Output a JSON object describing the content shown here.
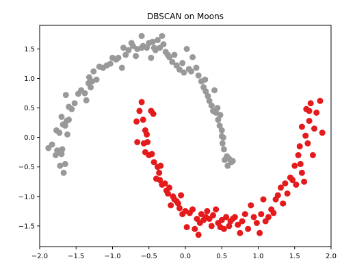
{
  "chart_data": {
    "type": "scatter",
    "title": "DBSCAN on Moons",
    "xlabel": "",
    "ylabel": "",
    "xlim": [
      -2.0,
      2.0
    ],
    "ylim": [
      -1.85,
      1.9
    ],
    "xticks": [
      -2.0,
      -1.5,
      -1.0,
      -0.5,
      0.0,
      0.5,
      1.0,
      1.5,
      2.0
    ],
    "yticks": [
      -1.5,
      -1.0,
      -0.5,
      0.0,
      0.5,
      1.0,
      1.5
    ],
    "x_tick_labels": [
      "−2.0",
      "−1.5",
      "−1.0",
      "−0.5",
      "0.0",
      "0.5",
      "1.0",
      "1.5",
      "2.0"
    ],
    "y_tick_labels": [
      "−1.5",
      "−1.0",
      "−0.5",
      "0.0",
      "0.5",
      "1.0",
      "1.5"
    ],
    "grid": false,
    "colors": {
      "cluster_0": "#999999",
      "cluster_1": "#e41a1c"
    },
    "series": [
      {
        "color": "#999999",
        "points": [
          [
            -1.88,
            -0.18
          ],
          [
            -1.83,
            -0.12
          ],
          [
            -1.78,
            -0.3
          ],
          [
            -1.76,
            -0.22
          ],
          [
            -1.74,
            -0.25
          ],
          [
            -1.72,
            -0.48
          ],
          [
            -1.7,
            -0.28
          ],
          [
            -1.69,
            -0.2
          ],
          [
            -1.67,
            -0.6
          ],
          [
            -1.65,
            -0.45
          ],
          [
            -1.77,
            0.12
          ],
          [
            -1.73,
            0.08
          ],
          [
            -1.7,
            0.35
          ],
          [
            -1.68,
            0.22
          ],
          [
            -1.65,
            0.2
          ],
          [
            -1.62,
            0.05
          ],
          [
            -1.63,
            0.28
          ],
          [
            -1.6,
            0.3
          ],
          [
            -1.64,
            0.72
          ],
          [
            -1.6,
            0.52
          ],
          [
            -1.56,
            0.48
          ],
          [
            -1.52,
            0.58
          ],
          [
            -1.47,
            0.74
          ],
          [
            -1.43,
            0.8
          ],
          [
            -1.38,
            0.75
          ],
          [
            -1.36,
            0.63
          ],
          [
            -1.33,
            0.92
          ],
          [
            -1.32,
            1.02
          ],
          [
            -1.3,
            0.85
          ],
          [
            -1.28,
            0.95
          ],
          [
            -1.26,
            1.12
          ],
          [
            -1.22,
            0.98
          ],
          [
            -1.18,
            1.2
          ],
          [
            -1.13,
            1.18
          ],
          [
            -1.08,
            1.22
          ],
          [
            -1.03,
            1.25
          ],
          [
            -1.0,
            1.35
          ],
          [
            -0.95,
            1.32
          ],
          [
            -0.92,
            1.35
          ],
          [
            -0.87,
            1.18
          ],
          [
            -0.85,
            1.52
          ],
          [
            -0.82,
            1.4
          ],
          [
            -0.78,
            1.48
          ],
          [
            -0.74,
            1.6
          ],
          [
            -0.72,
            1.55
          ],
          [
            -0.68,
            1.38
          ],
          [
            -0.66,
            1.5
          ],
          [
            -0.6,
            1.72
          ],
          [
            -0.6,
            1.52
          ],
          [
            -0.58,
            1.55
          ],
          [
            -0.53,
            1.52
          ],
          [
            -0.5,
            1.6
          ],
          [
            -0.47,
            1.35
          ],
          [
            -0.45,
            1.62
          ],
          [
            -0.43,
            1.52
          ],
          [
            -0.41,
            1.48
          ],
          [
            -0.38,
            1.65
          ],
          [
            -0.35,
            1.52
          ],
          [
            -0.32,
            1.72
          ],
          [
            -0.3,
            1.58
          ],
          [
            -0.27,
            1.45
          ],
          [
            -0.24,
            1.4
          ],
          [
            -0.22,
            1.36
          ],
          [
            -0.18,
            1.28
          ],
          [
            -0.15,
            1.4
          ],
          [
            -0.12,
            1.22
          ],
          [
            -0.08,
            1.15
          ],
          [
            -0.04,
            1.26
          ],
          [
            -0.02,
            1.1
          ],
          [
            0.02,
            1.5
          ],
          [
            0.05,
            1.16
          ],
          [
            0.08,
            1.12
          ],
          [
            0.1,
            1.36
          ],
          [
            0.15,
            1.18
          ],
          [
            0.18,
            1.05
          ],
          [
            0.22,
            0.95
          ],
          [
            0.25,
            0.85
          ],
          [
            0.27,
            0.98
          ],
          [
            0.28,
            0.78
          ],
          [
            0.31,
            0.7
          ],
          [
            0.33,
            0.62
          ],
          [
            0.36,
            0.54
          ],
          [
            0.38,
            0.45
          ],
          [
            0.4,
            0.8
          ],
          [
            0.42,
            0.42
          ],
          [
            0.44,
            0.5
          ],
          [
            0.45,
            0.3
          ],
          [
            0.47,
            0.2
          ],
          [
            0.48,
            0.38
          ],
          [
            0.5,
            0.12
          ],
          [
            0.5,
            0.02
          ],
          [
            0.51,
            -0.1
          ],
          [
            0.52,
            0.0
          ],
          [
            0.53,
            -0.2
          ],
          [
            0.54,
            -0.38
          ],
          [
            0.57,
            -0.32
          ],
          [
            0.58,
            -0.48
          ],
          [
            0.6,
            -0.36
          ],
          [
            0.63,
            -0.42
          ],
          [
            0.65,
            -0.4
          ]
        ]
      },
      {
        "color": "#e41a1c",
        "points": [
          [
            -0.67,
            0.27
          ],
          [
            -0.66,
            -0.08
          ],
          [
            -0.63,
            0.45
          ],
          [
            -0.6,
            0.6
          ],
          [
            -0.58,
            0.3
          ],
          [
            -0.57,
            -0.1
          ],
          [
            -0.55,
            0.12
          ],
          [
            -0.53,
            0.05
          ],
          [
            -0.52,
            -0.08
          ],
          [
            -0.55,
            -0.25
          ],
          [
            -0.5,
            -0.3
          ],
          [
            -0.47,
            0.45
          ],
          [
            -0.46,
            -0.28
          ],
          [
            -0.44,
            0.4
          ],
          [
            -0.43,
            -0.42
          ],
          [
            -0.4,
            -0.7
          ],
          [
            -0.38,
            -0.5
          ],
          [
            -0.36,
            -0.6
          ],
          [
            -0.34,
            -0.48
          ],
          [
            -0.35,
            -0.72
          ],
          [
            -0.32,
            -0.8
          ],
          [
            -0.28,
            -0.78
          ],
          [
            -0.26,
            -0.9
          ],
          [
            -0.24,
            -0.95
          ],
          [
            -0.22,
            -0.85
          ],
          [
            -0.2,
            -1.15
          ],
          [
            -0.17,
            -1.0
          ],
          [
            -0.15,
            -1.05
          ],
          [
            -0.12,
            -1.08
          ],
          [
            -0.1,
            -1.12
          ],
          [
            -0.08,
            -1.2
          ],
          [
            -0.06,
            -0.98
          ],
          [
            -0.04,
            -1.3
          ],
          [
            0.0,
            -1.25
          ],
          [
            0.02,
            -1.52
          ],
          [
            0.06,
            -1.28
          ],
          [
            0.1,
            -1.22
          ],
          [
            0.13,
            -1.55
          ],
          [
            0.16,
            -1.38
          ],
          [
            0.18,
            -1.65
          ],
          [
            0.2,
            -1.45
          ],
          [
            0.22,
            -1.3
          ],
          [
            0.25,
            -1.4
          ],
          [
            0.28,
            -1.35
          ],
          [
            0.3,
            -1.25
          ],
          [
            0.33,
            -1.38
          ],
          [
            0.36,
            -1.5
          ],
          [
            0.38,
            -1.32
          ],
          [
            0.42,
            -1.22
          ],
          [
            0.45,
            -1.45
          ],
          [
            0.48,
            -1.52
          ],
          [
            0.5,
            -1.4
          ],
          [
            0.53,
            -1.55
          ],
          [
            0.56,
            -1.35
          ],
          [
            0.6,
            -1.5
          ],
          [
            0.62,
            -1.42
          ],
          [
            0.65,
            -1.38
          ],
          [
            0.68,
            -1.35
          ],
          [
            0.72,
            -1.48
          ],
          [
            0.75,
            -1.62
          ],
          [
            0.78,
            -1.42
          ],
          [
            0.82,
            -1.3
          ],
          [
            0.86,
            -1.55
          ],
          [
            0.9,
            -1.15
          ],
          [
            0.94,
            -1.35
          ],
          [
            0.98,
            -1.45
          ],
          [
            1.02,
            -1.62
          ],
          [
            1.04,
            -1.3
          ],
          [
            1.07,
            -1.05
          ],
          [
            1.1,
            -1.42
          ],
          [
            1.14,
            -1.35
          ],
          [
            1.18,
            -1.22
          ],
          [
            1.21,
            -1.28
          ],
          [
            1.24,
            -1.05
          ],
          [
            1.27,
            -0.98
          ],
          [
            1.31,
            -0.85
          ],
          [
            1.34,
            -1.12
          ],
          [
            1.37,
            -0.78
          ],
          [
            1.4,
            -0.95
          ],
          [
            1.44,
            -0.68
          ],
          [
            1.47,
            -0.72
          ],
          [
            1.5,
            -0.48
          ],
          [
            1.52,
            -0.8
          ],
          [
            1.55,
            -0.3
          ],
          [
            1.57,
            -0.15
          ],
          [
            1.58,
            -0.45
          ],
          [
            1.6,
            -0.6
          ],
          [
            1.6,
            0.18
          ],
          [
            1.63,
            -0.75
          ],
          [
            1.65,
            0.03
          ],
          [
            1.66,
            0.48
          ],
          [
            1.68,
            -0.1
          ],
          [
            1.7,
            0.28
          ],
          [
            1.72,
            0.58
          ],
          [
            1.75,
            -0.3
          ],
          [
            1.77,
            0.15
          ],
          [
            1.8,
            0.42
          ],
          [
            1.85,
            0.62
          ],
          [
            1.88,
            0.08
          ],
          [
            1.7,
            0.45
          ]
        ]
      }
    ]
  }
}
